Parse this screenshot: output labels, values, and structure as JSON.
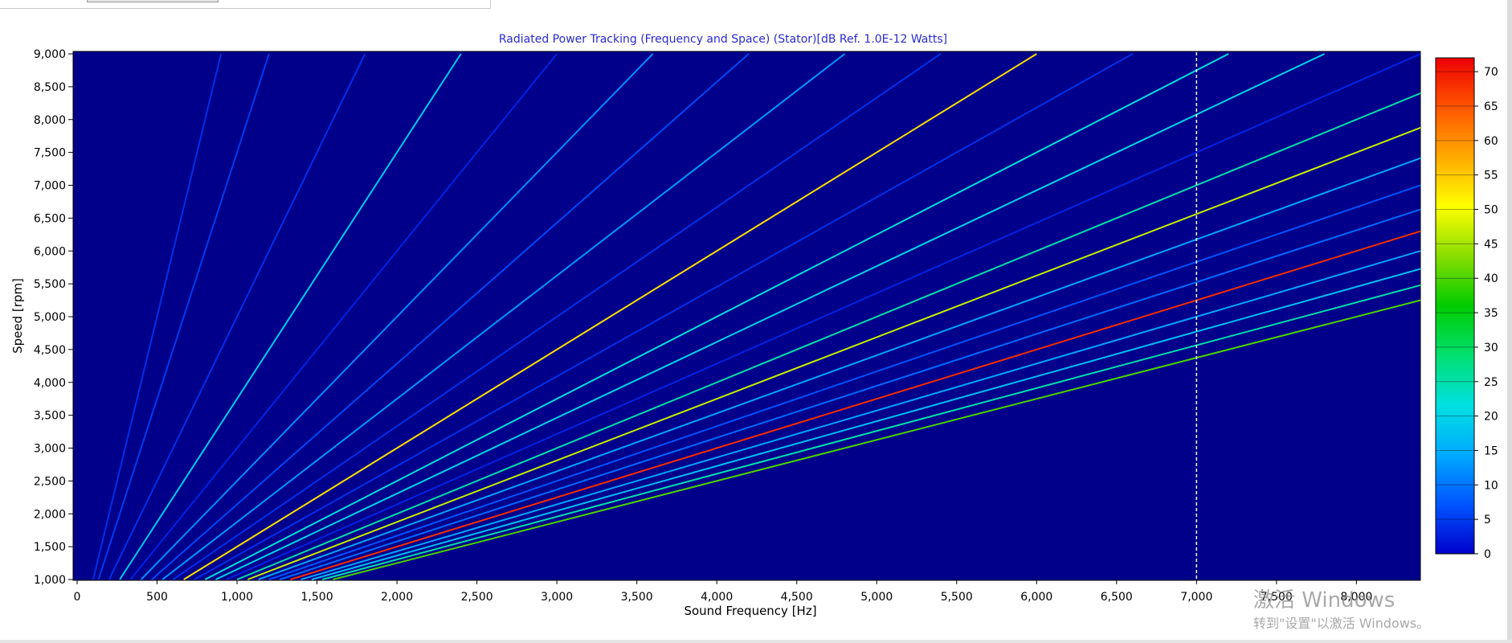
{
  "chart_data": {
    "type": "heatmap",
    "title": "Radiated Power Tracking (Frequency and Space) (Stator)[dB Ref. 1.0E-12 Watts]",
    "xlabel": "Sound Frequency [Hz]",
    "ylabel": "Speed [rpm]",
    "xlim": [
      0,
      8400
    ],
    "ylim": [
      1000,
      9000
    ],
    "xticks": [
      "0",
      "500",
      "1,000",
      "1,500",
      "2,000",
      "2,500",
      "3,000",
      "3,500",
      "4,000",
      "4,500",
      "5,000",
      "5,500",
      "6,000",
      "6,500",
      "7,000",
      "7,500",
      "8,000"
    ],
    "yticks": [
      "1,000",
      "1,500",
      "2,000",
      "2,500",
      "3,000",
      "3,500",
      "4,000",
      "4,500",
      "5,000",
      "5,500",
      "6,000",
      "6,500",
      "7,000",
      "7,500",
      "8,000",
      "8,500",
      "9,000"
    ],
    "colorbar": {
      "ticks": [
        "0",
        "5",
        "10",
        "15",
        "20",
        "25",
        "30",
        "35",
        "40",
        "45",
        "50",
        "55",
        "60",
        "65",
        "70"
      ],
      "range": [
        0,
        72
      ],
      "colormap": [
        "#0000cc",
        "#0055ff",
        "#00aaff",
        "#00e0e0",
        "#00e070",
        "#00cc00",
        "#88dd00",
        "#ffff00",
        "#ffaa00",
        "#ff5500",
        "#ee0000"
      ]
    },
    "background_color": "#00008b",
    "grid": false,
    "cursor_x": 7000,
    "orders": [
      {
        "order": 6,
        "level": 4
      },
      {
        "order": 8,
        "level": 5
      },
      {
        "order": 12,
        "level": 4
      },
      {
        "order": 16,
        "level": 19
      },
      {
        "order": 20,
        "level": 3
      },
      {
        "order": 24,
        "level": 12
      },
      {
        "order": 28,
        "level": 6
      },
      {
        "order": 32,
        "level": 13
      },
      {
        "order": 36,
        "level": 4
      },
      {
        "order": 40,
        "level": 53
      },
      {
        "order": 44,
        "level": 4
      },
      {
        "order": 48,
        "level": 22
      },
      {
        "order": 52,
        "level": 20
      },
      {
        "order": 56,
        "level": 3
      },
      {
        "order": 60,
        "level": 25
      },
      {
        "order": 64,
        "level": 47
      },
      {
        "order": 68,
        "level": 14
      },
      {
        "order": 72,
        "level": 7
      },
      {
        "order": 76,
        "level": 9
      },
      {
        "order": 80,
        "level": 68
      },
      {
        "order": 84,
        "level": 14
      },
      {
        "order": 88,
        "level": 17
      },
      {
        "order": 92,
        "level": 25
      },
      {
        "order": 96,
        "level": 40
      }
    ]
  },
  "watermark": {
    "line1": "激活 Windows",
    "line2": "转到\"设置\"以激活 Windows。"
  }
}
